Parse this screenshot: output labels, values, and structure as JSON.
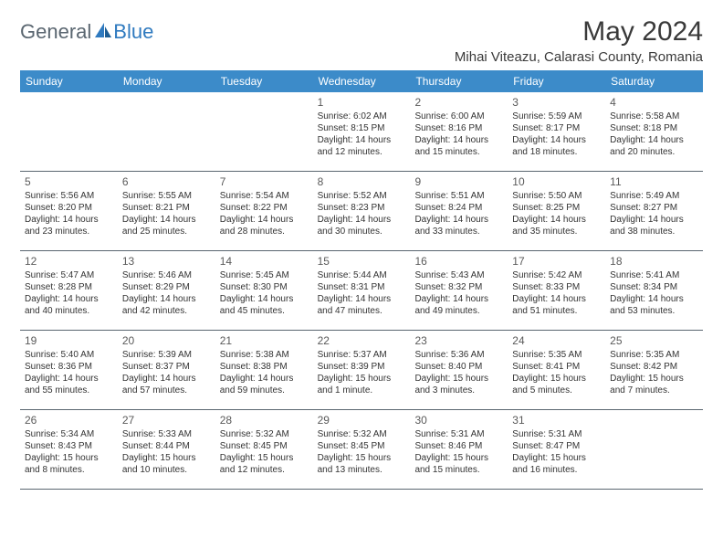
{
  "logo": {
    "general": "General",
    "blue": "Blue"
  },
  "title": "May 2024",
  "location": "Mihai Viteazu, Calarasi County, Romania",
  "colors": {
    "header_bg": "#3c8bc9",
    "header_text": "#ffffff",
    "divider": "#5a6670",
    "logo_gray": "#5a6670",
    "logo_blue": "#2f7abf"
  },
  "weekdays": [
    "Sunday",
    "Monday",
    "Tuesday",
    "Wednesday",
    "Thursday",
    "Friday",
    "Saturday"
  ],
  "weeks": [
    [
      {
        "num": "",
        "sr": "",
        "ss": "",
        "dl": ""
      },
      {
        "num": "",
        "sr": "",
        "ss": "",
        "dl": ""
      },
      {
        "num": "",
        "sr": "",
        "ss": "",
        "dl": ""
      },
      {
        "num": "1",
        "sr": "Sunrise: 6:02 AM",
        "ss": "Sunset: 8:15 PM",
        "dl": "Daylight: 14 hours and 12 minutes."
      },
      {
        "num": "2",
        "sr": "Sunrise: 6:00 AM",
        "ss": "Sunset: 8:16 PM",
        "dl": "Daylight: 14 hours and 15 minutes."
      },
      {
        "num": "3",
        "sr": "Sunrise: 5:59 AM",
        "ss": "Sunset: 8:17 PM",
        "dl": "Daylight: 14 hours and 18 minutes."
      },
      {
        "num": "4",
        "sr": "Sunrise: 5:58 AM",
        "ss": "Sunset: 8:18 PM",
        "dl": "Daylight: 14 hours and 20 minutes."
      }
    ],
    [
      {
        "num": "5",
        "sr": "Sunrise: 5:56 AM",
        "ss": "Sunset: 8:20 PM",
        "dl": "Daylight: 14 hours and 23 minutes."
      },
      {
        "num": "6",
        "sr": "Sunrise: 5:55 AM",
        "ss": "Sunset: 8:21 PM",
        "dl": "Daylight: 14 hours and 25 minutes."
      },
      {
        "num": "7",
        "sr": "Sunrise: 5:54 AM",
        "ss": "Sunset: 8:22 PM",
        "dl": "Daylight: 14 hours and 28 minutes."
      },
      {
        "num": "8",
        "sr": "Sunrise: 5:52 AM",
        "ss": "Sunset: 8:23 PM",
        "dl": "Daylight: 14 hours and 30 minutes."
      },
      {
        "num": "9",
        "sr": "Sunrise: 5:51 AM",
        "ss": "Sunset: 8:24 PM",
        "dl": "Daylight: 14 hours and 33 minutes."
      },
      {
        "num": "10",
        "sr": "Sunrise: 5:50 AM",
        "ss": "Sunset: 8:25 PM",
        "dl": "Daylight: 14 hours and 35 minutes."
      },
      {
        "num": "11",
        "sr": "Sunrise: 5:49 AM",
        "ss": "Sunset: 8:27 PM",
        "dl": "Daylight: 14 hours and 38 minutes."
      }
    ],
    [
      {
        "num": "12",
        "sr": "Sunrise: 5:47 AM",
        "ss": "Sunset: 8:28 PM",
        "dl": "Daylight: 14 hours and 40 minutes."
      },
      {
        "num": "13",
        "sr": "Sunrise: 5:46 AM",
        "ss": "Sunset: 8:29 PM",
        "dl": "Daylight: 14 hours and 42 minutes."
      },
      {
        "num": "14",
        "sr": "Sunrise: 5:45 AM",
        "ss": "Sunset: 8:30 PM",
        "dl": "Daylight: 14 hours and 45 minutes."
      },
      {
        "num": "15",
        "sr": "Sunrise: 5:44 AM",
        "ss": "Sunset: 8:31 PM",
        "dl": "Daylight: 14 hours and 47 minutes."
      },
      {
        "num": "16",
        "sr": "Sunrise: 5:43 AM",
        "ss": "Sunset: 8:32 PM",
        "dl": "Daylight: 14 hours and 49 minutes."
      },
      {
        "num": "17",
        "sr": "Sunrise: 5:42 AM",
        "ss": "Sunset: 8:33 PM",
        "dl": "Daylight: 14 hours and 51 minutes."
      },
      {
        "num": "18",
        "sr": "Sunrise: 5:41 AM",
        "ss": "Sunset: 8:34 PM",
        "dl": "Daylight: 14 hours and 53 minutes."
      }
    ],
    [
      {
        "num": "19",
        "sr": "Sunrise: 5:40 AM",
        "ss": "Sunset: 8:36 PM",
        "dl": "Daylight: 14 hours and 55 minutes."
      },
      {
        "num": "20",
        "sr": "Sunrise: 5:39 AM",
        "ss": "Sunset: 8:37 PM",
        "dl": "Daylight: 14 hours and 57 minutes."
      },
      {
        "num": "21",
        "sr": "Sunrise: 5:38 AM",
        "ss": "Sunset: 8:38 PM",
        "dl": "Daylight: 14 hours and 59 minutes."
      },
      {
        "num": "22",
        "sr": "Sunrise: 5:37 AM",
        "ss": "Sunset: 8:39 PM",
        "dl": "Daylight: 15 hours and 1 minute."
      },
      {
        "num": "23",
        "sr": "Sunrise: 5:36 AM",
        "ss": "Sunset: 8:40 PM",
        "dl": "Daylight: 15 hours and 3 minutes."
      },
      {
        "num": "24",
        "sr": "Sunrise: 5:35 AM",
        "ss": "Sunset: 8:41 PM",
        "dl": "Daylight: 15 hours and 5 minutes."
      },
      {
        "num": "25",
        "sr": "Sunrise: 5:35 AM",
        "ss": "Sunset: 8:42 PM",
        "dl": "Daylight: 15 hours and 7 minutes."
      }
    ],
    [
      {
        "num": "26",
        "sr": "Sunrise: 5:34 AM",
        "ss": "Sunset: 8:43 PM",
        "dl": "Daylight: 15 hours and 8 minutes."
      },
      {
        "num": "27",
        "sr": "Sunrise: 5:33 AM",
        "ss": "Sunset: 8:44 PM",
        "dl": "Daylight: 15 hours and 10 minutes."
      },
      {
        "num": "28",
        "sr": "Sunrise: 5:32 AM",
        "ss": "Sunset: 8:45 PM",
        "dl": "Daylight: 15 hours and 12 minutes."
      },
      {
        "num": "29",
        "sr": "Sunrise: 5:32 AM",
        "ss": "Sunset: 8:45 PM",
        "dl": "Daylight: 15 hours and 13 minutes."
      },
      {
        "num": "30",
        "sr": "Sunrise: 5:31 AM",
        "ss": "Sunset: 8:46 PM",
        "dl": "Daylight: 15 hours and 15 minutes."
      },
      {
        "num": "31",
        "sr": "Sunrise: 5:31 AM",
        "ss": "Sunset: 8:47 PM",
        "dl": "Daylight: 15 hours and 16 minutes."
      },
      {
        "num": "",
        "sr": "",
        "ss": "",
        "dl": ""
      }
    ]
  ]
}
